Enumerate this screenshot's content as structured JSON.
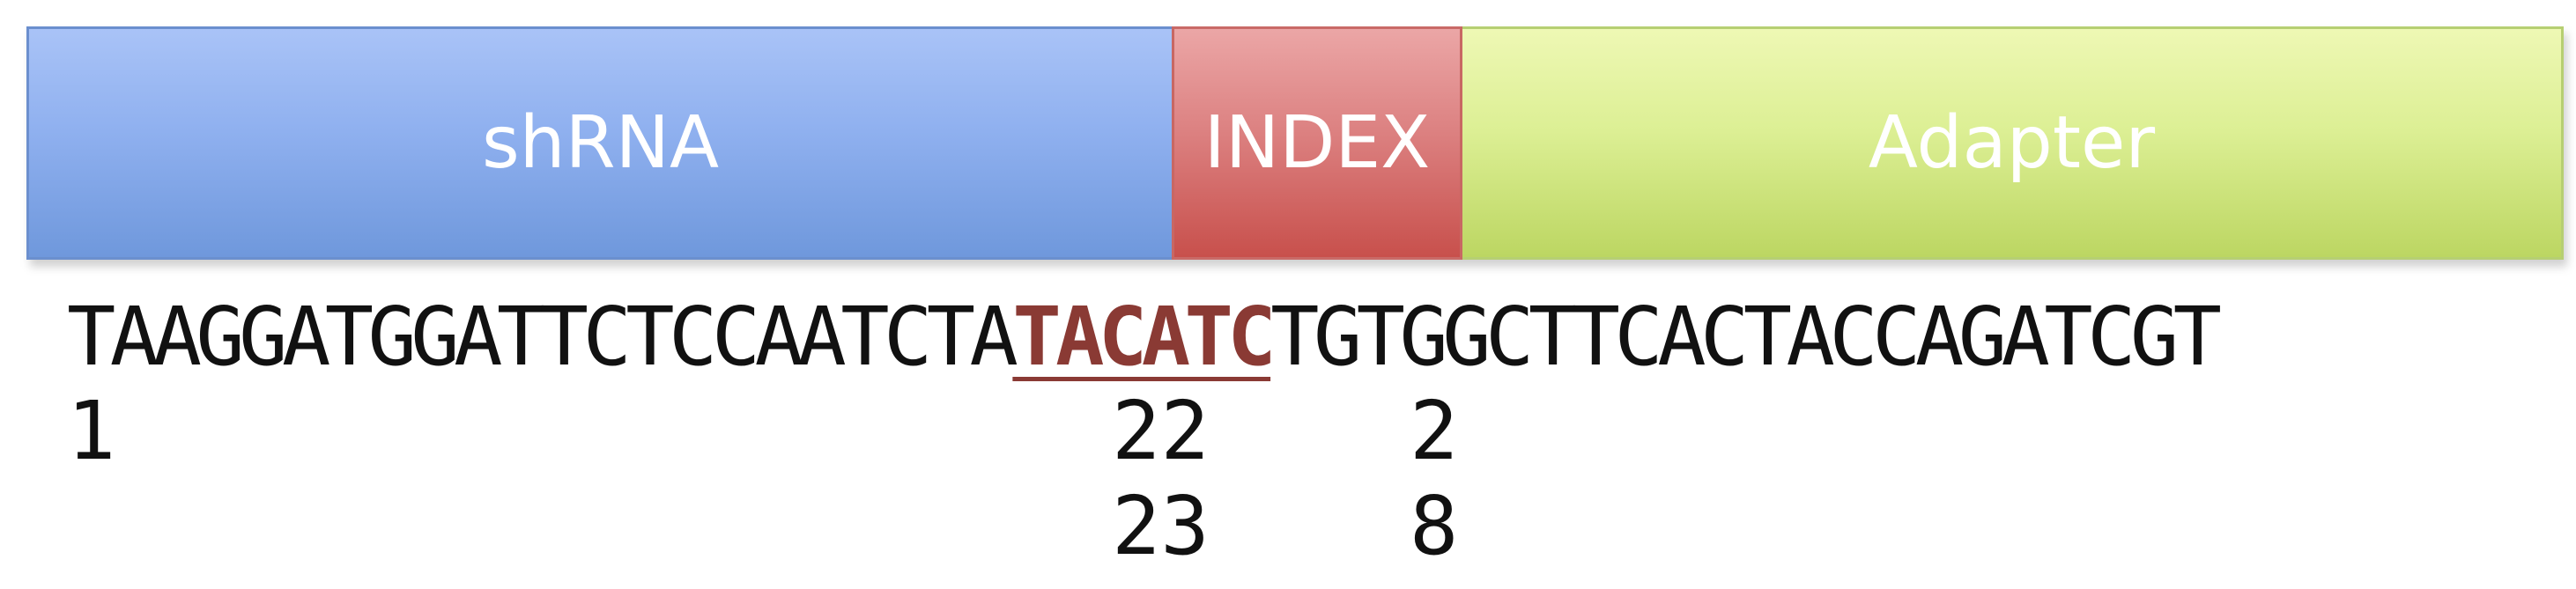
{
  "segments": {
    "shrna": "shRNA",
    "index": "INDEX",
    "adapter": "Adapter"
  },
  "colors": {
    "shrna": "#8fb0ef",
    "index": "#dc8181",
    "adapter": "#dcef94",
    "index_text": "#8a3a34"
  },
  "sequence": {
    "before": "TAAGGATGGATTCTCCAATCTA",
    "index": "TACATC",
    "after": "TGTGGCTTCACTACCAGATCGT"
  },
  "positions": {
    "start": "1",
    "index_start_tens": "22",
    "index_start_next": "23",
    "index_end_a": "2",
    "index_end_b": "8"
  }
}
